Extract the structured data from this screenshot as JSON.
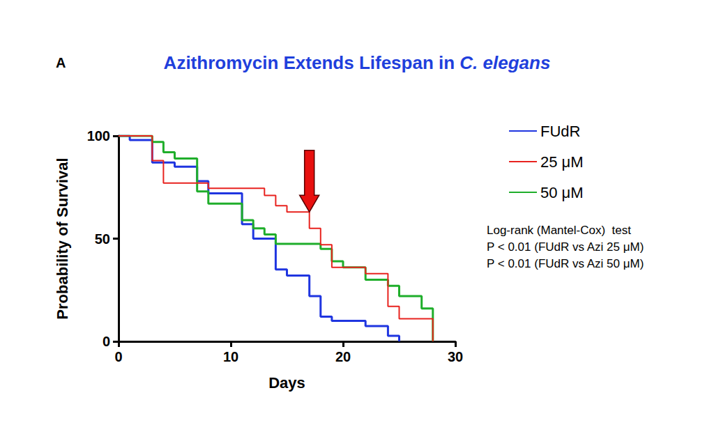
{
  "chart_data": {
    "type": "step",
    "panel_label": "A",
    "title": "Azithromycin Extends Lifespan in C. elegans",
    "x_label": "Days",
    "y_label": "Probability of Survival",
    "xlim": [
      0,
      30
    ],
    "xticks": [
      0,
      10,
      20,
      30
    ],
    "ylim": [
      0,
      100
    ],
    "yticks": [
      0,
      50,
      100
    ],
    "grid": false,
    "legend": "right",
    "series": [
      {
        "name": "FUdR",
        "color": "#1f35e0",
        "x": [
          0,
          1,
          3,
          5,
          7,
          8,
          11,
          12,
          14,
          15,
          17,
          18,
          19,
          22,
          24,
          25
        ],
        "values": [
          100,
          98,
          87,
          85,
          78,
          72,
          57,
          50,
          35,
          32,
          22,
          12,
          10,
          7.5,
          2.7,
          0
        ]
      },
      {
        "name": "25 μM",
        "color": "#e8231f",
        "x": [
          0,
          3,
          4,
          8,
          13,
          14,
          15,
          17,
          18,
          19,
          22,
          24,
          25,
          28
        ],
        "values": [
          100,
          88,
          77,
          74.5,
          71,
          66,
          63,
          55,
          47,
          36,
          33,
          17,
          11,
          0
        ]
      },
      {
        "name": "50 μM",
        "color": "#1fae2b",
        "x": [
          0,
          3,
          4,
          5,
          7,
          8,
          11,
          12,
          13,
          14,
          18,
          19,
          20,
          22,
          24,
          25,
          27,
          28
        ],
        "values": [
          100,
          97,
          92,
          89,
          73,
          67,
          59,
          55,
          52,
          47.5,
          45,
          39,
          36,
          30,
          27,
          22,
          16,
          0
        ]
      }
    ],
    "arrow": {
      "x": 17,
      "y_from": 93,
      "y_to": 63,
      "color": "#e8100f"
    },
    "annotations": [
      "Log-rank (Mantel-Cox)  test",
      "P < 0.01 (FUdR vs Azi 25 μM)",
      "P < 0.01 (FUdR vs Azi 50 μM)"
    ]
  }
}
